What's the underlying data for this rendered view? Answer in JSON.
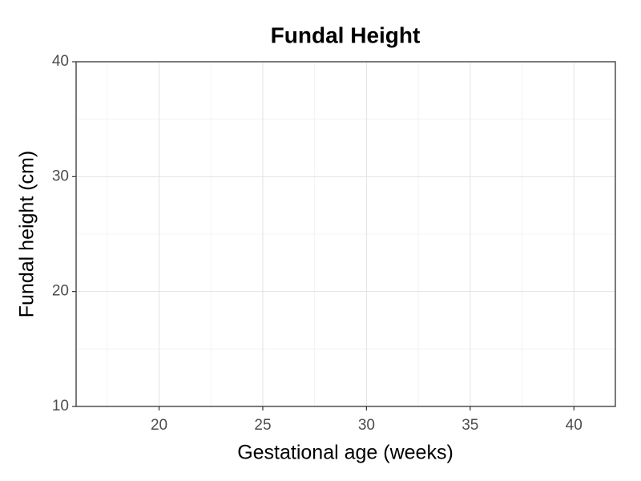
{
  "chart_data": {
    "type": "scatter",
    "title": "Fundal Height",
    "x_label": "Gestational age (weeks)",
    "y_label": "Fundal height (cm)",
    "xlim": [
      16,
      42
    ],
    "xticks": [
      20,
      25,
      30,
      35,
      40
    ],
    "ylim": [
      10,
      40
    ],
    "yticks": [
      10,
      20,
      30,
      40
    ],
    "grid": true,
    "minor_grid": true
  }
}
